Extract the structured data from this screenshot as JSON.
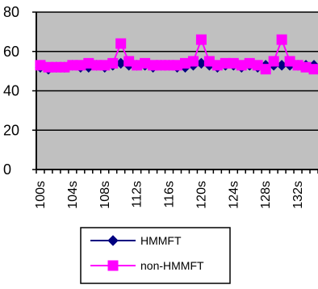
{
  "chart_data": {
    "type": "line",
    "x": [
      "100s",
      "101s",
      "102s",
      "103s",
      "104s",
      "105s",
      "106s",
      "107s",
      "108s",
      "109s",
      "110s",
      "111s",
      "112s",
      "113s",
      "114s",
      "115s",
      "116s",
      "117s",
      "118s",
      "119s",
      "120s",
      "121s",
      "122s",
      "123s",
      "124s",
      "125s",
      "126s",
      "127s",
      "128s",
      "129s",
      "130s",
      "131s",
      "132s",
      "133s",
      "134s"
    ],
    "xtick_labels": [
      "100s",
      "104s",
      "108s",
      "112s",
      "116s",
      "120s",
      "124s",
      "128s",
      "132s"
    ],
    "ylim": [
      0,
      80
    ],
    "yticks": [
      0,
      20,
      40,
      60,
      80
    ],
    "grid": true,
    "legend_position": "bottom",
    "series": [
      {
        "name": "HMMFT",
        "color": "#000080",
        "marker": "diamond",
        "values": [
          52,
          51,
          52,
          52,
          53,
          52,
          52,
          53,
          52,
          53,
          54,
          53,
          53,
          53,
          52,
          53,
          53,
          52,
          52,
          53,
          54,
          53,
          52,
          53,
          53,
          52,
          53,
          52,
          53,
          53,
          53,
          53,
          53,
          53,
          53
        ]
      },
      {
        "name": "non-HMMFT",
        "color": "#ff00ff",
        "marker": "square",
        "values": [
          53,
          52,
          52,
          52,
          53,
          53,
          54,
          53,
          53,
          54,
          64,
          55,
          53,
          54,
          53,
          53,
          53,
          53,
          54,
          55,
          66,
          55,
          53,
          54,
          54,
          53,
          54,
          53,
          51,
          55,
          66,
          55,
          53,
          52,
          51
        ]
      }
    ]
  }
}
